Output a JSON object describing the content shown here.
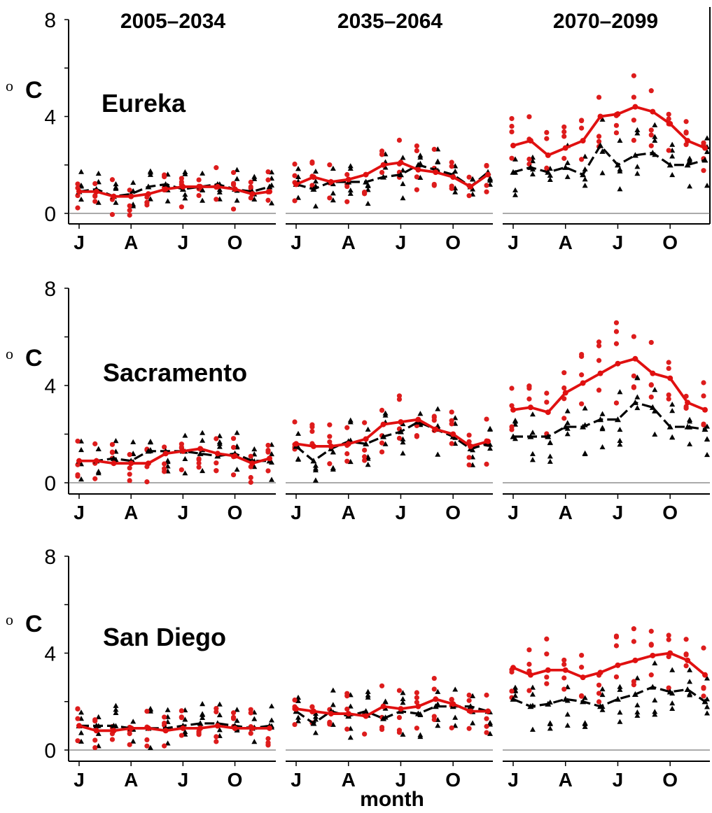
{
  "chart_data": {
    "type": "line",
    "xlabel": "month",
    "ylabel": "o C",
    "ylabel_parts": {
      "superscript": "o",
      "unit": "C"
    },
    "ylim": [
      0,
      8
    ],
    "yticks": [
      "0",
      "4",
      "8"
    ],
    "months": [
      1,
      2,
      3,
      4,
      5,
      6,
      7,
      8,
      9,
      10,
      11,
      12
    ],
    "xtick_labels": [
      "J",
      "A",
      "J",
      "O"
    ],
    "xtick_months": [
      1,
      4,
      7,
      10
    ],
    "periods": [
      "2005–2034",
      "2035–2064",
      "2070–2099"
    ],
    "colors": {
      "red": "#e01010",
      "black": "#000000",
      "point_red": "#dd1c1c"
    },
    "series_styles": {
      "red": "solid line, circle markers",
      "black": "dashed line, triangle markers"
    },
    "cities": [
      {
        "name": "Eureka",
        "panels": [
          {
            "red": [
              0.9,
              0.9,
              0.7,
              0.7,
              0.8,
              1.0,
              1.1,
              1.1,
              1.1,
              1.0,
              0.8,
              0.9
            ],
            "black": [
              0.9,
              1.0,
              0.7,
              0.8,
              1.1,
              1.2,
              1.0,
              1.1,
              1.2,
              1.0,
              0.9,
              1.1
            ]
          },
          {
            "red": [
              1.2,
              1.5,
              1.3,
              1.4,
              1.6,
              2.0,
              2.1,
              1.8,
              1.7,
              1.5,
              1.1,
              1.6
            ],
            "black": [
              1.2,
              1.0,
              1.3,
              1.3,
              1.3,
              1.5,
              1.6,
              2.0,
              1.8,
              1.6,
              1.1,
              1.7
            ]
          },
          {
            "red": [
              2.8,
              3.0,
              2.4,
              2.7,
              3.0,
              4.0,
              4.1,
              4.4,
              4.2,
              3.7,
              3.0,
              2.7
            ],
            "black": [
              1.7,
              1.9,
              1.7,
              1.9,
              1.6,
              2.8,
              2.0,
              2.4,
              2.5,
              2.0,
              2.0,
              2.2
            ]
          }
        ]
      },
      {
        "name": "Sacramento",
        "panels": [
          {
            "red": [
              0.9,
              0.9,
              0.8,
              0.8,
              0.8,
              1.2,
              1.3,
              1.4,
              1.2,
              1.1,
              0.8,
              1.0
            ],
            "black": [
              0.9,
              0.9,
              1.0,
              0.9,
              1.3,
              1.3,
              1.3,
              1.2,
              1.1,
              1.2,
              0.9,
              0.9
            ]
          },
          {
            "red": [
              1.6,
              1.5,
              1.5,
              1.6,
              1.8,
              2.4,
              2.5,
              2.6,
              2.2,
              2.0,
              1.5,
              1.7
            ],
            "black": [
              1.5,
              0.9,
              1.4,
              1.7,
              1.6,
              1.9,
              2.1,
              2.5,
              2.2,
              1.9,
              1.4,
              1.6
            ]
          },
          {
            "red": [
              3.0,
              3.1,
              2.9,
              3.7,
              4.1,
              4.5,
              4.9,
              5.1,
              4.5,
              4.3,
              3.3,
              3.0
            ],
            "black": [
              1.9,
              1.9,
              1.9,
              2.3,
              2.3,
              2.6,
              2.6,
              3.3,
              3.1,
              2.3,
              2.3,
              2.2
            ]
          }
        ]
      },
      {
        "name": "San Diego",
        "panels": [
          {
            "red": [
              1.0,
              0.8,
              0.8,
              0.9,
              0.9,
              0.8,
              0.9,
              0.9,
              1.0,
              0.9,
              0.9,
              0.9
            ],
            "black": [
              1.0,
              1.0,
              1.0,
              0.9,
              0.9,
              0.9,
              1.0,
              1.1,
              1.1,
              1.0,
              0.9,
              1.0
            ]
          },
          {
            "red": [
              1.7,
              1.6,
              1.5,
              1.5,
              1.4,
              1.8,
              1.7,
              1.8,
              2.1,
              1.9,
              1.6,
              1.6
            ],
            "black": [
              1.6,
              1.1,
              1.6,
              1.4,
              1.6,
              1.3,
              1.6,
              1.5,
              1.8,
              1.8,
              1.8,
              1.6
            ]
          },
          {
            "red": [
              3.4,
              3.1,
              3.3,
              3.3,
              3.0,
              3.2,
              3.5,
              3.7,
              3.9,
              4.0,
              3.7,
              3.1
            ],
            "black": [
              2.1,
              1.8,
              1.9,
              2.1,
              2.0,
              1.8,
              2.1,
              2.3,
              2.6,
              2.4,
              2.5,
              2.0
            ]
          }
        ]
      }
    ]
  }
}
